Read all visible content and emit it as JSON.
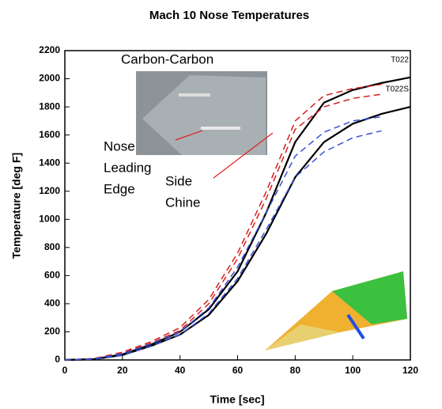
{
  "chart_data": {
    "type": "line",
    "title": "Mach 10 Nose Temperatures",
    "xlabel": "Time [sec]",
    "ylabel": "Temperature [deg F]",
    "x": [
      0,
      10,
      20,
      30,
      40,
      50,
      60,
      70,
      80,
      90,
      100,
      110,
      120
    ],
    "series": [
      {
        "name": "T022",
        "color": "#000000",
        "dash": false,
        "values": [
          0,
          5,
          40,
          110,
          200,
          360,
          630,
          1050,
          1550,
          1830,
          1920,
          1970,
          2010
        ]
      },
      {
        "name": "T022S",
        "color": "#000000",
        "dash": false,
        "values": [
          0,
          5,
          35,
          100,
          180,
          320,
          560,
          900,
          1300,
          1550,
          1680,
          1750,
          1800
        ]
      },
      {
        "color": "#d62020",
        "dash": true,
        "values": [
          0,
          10,
          55,
          130,
          230,
          430,
          760,
          1200,
          1700,
          1880,
          1930,
          1960,
          null
        ]
      },
      {
        "color": "#d62020",
        "dash": true,
        "values": [
          0,
          10,
          50,
          120,
          210,
          400,
          720,
          1150,
          1640,
          1800,
          1860,
          1890,
          null
        ]
      },
      {
        "color": "#3a4fd8",
        "dash": true,
        "values": [
          0,
          8,
          45,
          115,
          200,
          370,
          660,
          1050,
          1450,
          1620,
          1700,
          1730,
          null
        ]
      },
      {
        "color": "#3a4fd8",
        "dash": true,
        "values": [
          0,
          5,
          35,
          100,
          180,
          330,
          580,
          930,
          1300,
          1480,
          1580,
          1630,
          null
        ]
      }
    ],
    "xlim": [
      0,
      120
    ],
    "xticks": [
      0,
      20,
      40,
      60,
      80,
      100,
      120
    ],
    "ylim": [
      0,
      2200
    ],
    "yticks": [
      0,
      200,
      400,
      600,
      800,
      1000,
      1200,
      1400,
      1600,
      1800,
      2000,
      2200
    ],
    "annotations": {
      "photo": "Carbon-Carbon",
      "nose": [
        "Nose",
        "Leading",
        "Edge"
      ],
      "side": [
        "Side",
        "Chine"
      ]
    }
  }
}
